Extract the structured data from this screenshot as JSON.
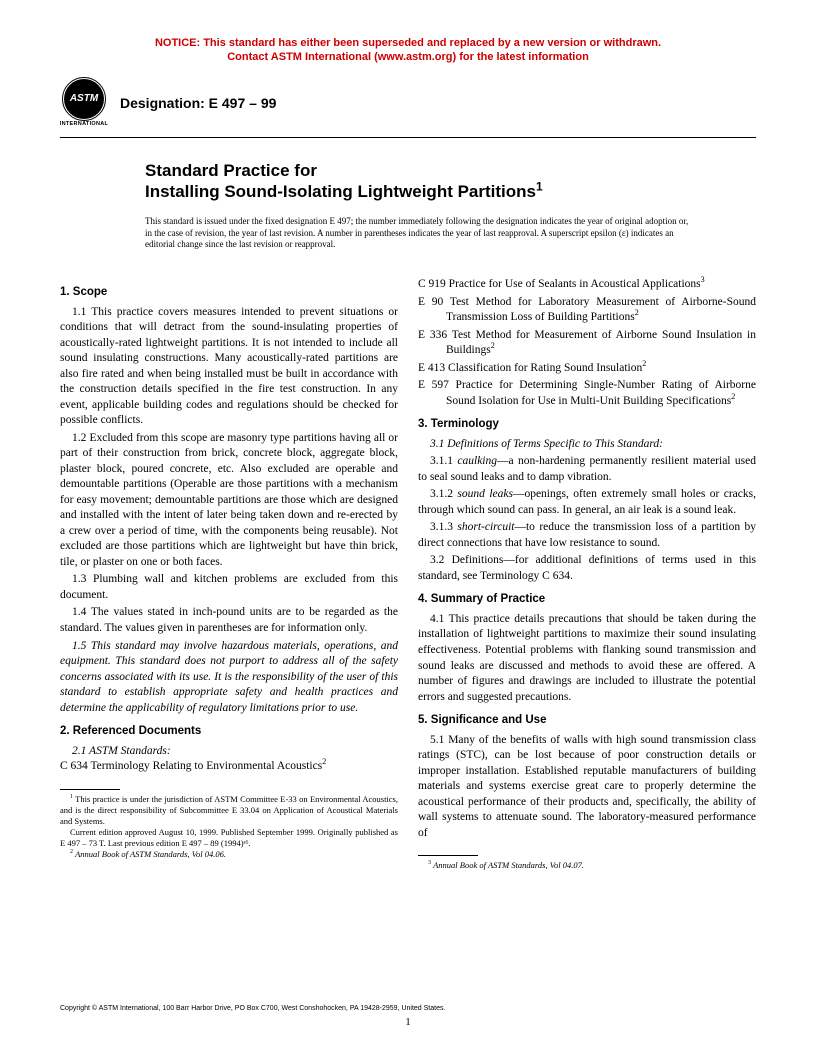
{
  "notice": {
    "line1": "NOTICE: This standard has either been superseded and replaced by a new version or withdrawn.",
    "line2": "Contact ASTM International (www.astm.org) for the latest information",
    "color": "#cc0000"
  },
  "logo": {
    "abbrev": "ASTM",
    "sub": "INTERNATIONAL"
  },
  "designation": "Designation: E 497 – 99",
  "title": {
    "line1": "Standard Practice for",
    "line2": "Installing Sound-Isolating Lightweight Partitions",
    "sup": "1"
  },
  "issuance": "This standard is issued under the fixed designation E 497; the number immediately following the designation indicates the year of original adoption or, in the case of revision, the year of last revision. A number in parentheses indicates the year of last reapproval. A superscript epsilon (ε) indicates an editorial change since the last revision or reapproval.",
  "left": {
    "s1_head": "1. Scope",
    "s1_1": "1.1 This practice covers measures intended to prevent situations or conditions that will detract from the sound-insulating properties of acoustically-rated lightweight partitions. It is not intended to include all sound insulating constructions. Many acoustically-rated partitions are also fire rated and when being installed must be built in accordance with the construction details specified in the fire test construction. In any event, applicable building codes and regulations should be checked for possible conflicts.",
    "s1_2": "1.2 Excluded from this scope are masonry type partitions having all or part of their construction from brick, concrete block, aggregate block, plaster block, poured concrete, etc. Also excluded are operable and demountable partitions (Operable are those partitions with a mechanism for easy movement; demountable partitions are those which are designed and installed with the intent of later being taken down and re-erected by a crew over a period of time, with the components being reusable). Not excluded are those partitions which are lightweight but have thin brick, tile, or plaster on one or both faces.",
    "s1_3": "1.3 Plumbing wall and kitchen problems are excluded from this document.",
    "s1_4": "1.4 The values stated in inch-pound units are to be regarded as the standard. The values given in parentheses are for information only.",
    "s1_5": "1.5 This standard may involve hazardous materials, operations, and equipment. This standard does not purport to address all of the safety concerns associated with its use. It is the responsibility of the user of this standard to establish appropriate safety and health practices and determine the applicability of regulatory limitations prior to use.",
    "s2_head": "2. Referenced Documents",
    "s2_1": "2.1 ASTM Standards:",
    "s2_c634": "C 634 Terminology Relating to Environmental Acoustics",
    "fn1": " This practice is under the jurisdiction of ASTM Committee E-33 on Environmental Acoustics, and is the direct responsibility of Subcommittee E 33.04 on Application of Acoustical Materials and Systems.",
    "fn1b": "Current edition approved August 10, 1999. Published September 1999. Originally published as E 497 – 73 T. Last previous edition E 497 – 89 (1994)ᵉ¹.",
    "fn2": "Annual Book of ASTM Standards, Vol 04.06."
  },
  "right": {
    "r_c919": "C 919 Practice for Use of Sealants in Acoustical Applications",
    "r_e90": "E 90 Test Method for Laboratory Measurement of Airborne-Sound Transmission Loss of Building Partitions",
    "r_e336": "E 336 Test Method for Measurement of Airborne Sound Insulation in Buildings",
    "r_e413": "E 413 Classification for Rating Sound Insulation",
    "r_e597": "E 597 Practice for Determining Single-Number Rating of Airborne Sound Isolation for Use in Multi-Unit Building Specifications",
    "s3_head": "3. Terminology",
    "s3_1": "3.1 Definitions of Terms Specific to This Standard:",
    "s3_1_1a": "3.1.1 ",
    "s3_1_1b": "caulking",
    "s3_1_1c": "—a non-hardening permanently resilient material used to seal sound leaks and to damp vibration.",
    "s3_1_2a": "3.1.2 ",
    "s3_1_2b": "sound leaks",
    "s3_1_2c": "—openings, often extremely small holes or cracks, through which sound can pass. In general, an air leak is a sound leak.",
    "s3_1_3a": "3.1.3 ",
    "s3_1_3b": "short-circuit",
    "s3_1_3c": "—to reduce the transmission loss of a partition by direct connections that have low resistance to sound.",
    "s3_2": "3.2 Definitions—for additional definitions of terms used in this standard, see Terminology C 634.",
    "s4_head": "4. Summary of Practice",
    "s4_1": "4.1 This practice details precautions that should be taken during the installation of lightweight partitions to maximize their sound insulating effectiveness. Potential problems with flanking sound transmission and sound leaks are discussed and methods to avoid these are offered. A number of figures and drawings are included to illustrate the potential errors and suggested precautions.",
    "s5_head": "5. Significance and Use",
    "s5_1": "5.1 Many of the benefits of walls with high sound transmission class ratings (STC), can be lost because of poor construction details or improper installation. Established reputable manufacturers of building materials and systems exercise great care to properly determine the acoustical performance of their products and, specifically, the ability of wall systems to attenuate sound. The laboratory-measured performance of",
    "fn3": "Annual Book of ASTM Standards, Vol 04.07."
  },
  "copyright": "Copyright © ASTM International, 100 Barr Harbor Drive, PO Box C700, West Conshohocken, PA 19428-2959, United States.",
  "pagenum": "1"
}
